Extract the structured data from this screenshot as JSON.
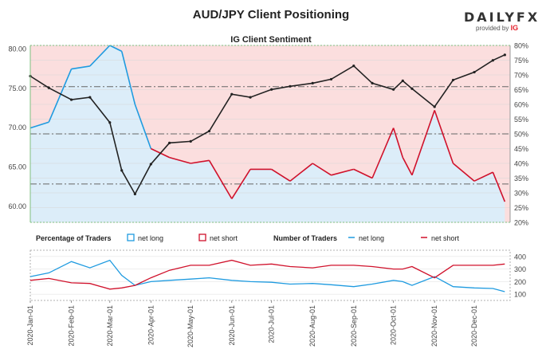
{
  "title": "AUD/JPY Client Positioning",
  "brand": {
    "name": "DAILY",
    "fx": "FX",
    "provided_by": "provided by",
    "ig": "IG"
  },
  "colors": {
    "net_long": "#1f9be0",
    "net_short": "#d0112b",
    "price": "#222222",
    "short_fill": "#fbdede",
    "long_fill": "#dcedf9",
    "axis": "#7fbf7f"
  },
  "chart_data": [
    {
      "type": "line",
      "title": "IG Client Sentiment",
      "y_left": {
        "ticks": [
          "80.00",
          "75.00",
          "70.00",
          "65.00",
          "60.00"
        ],
        "range": [
          57.9,
          80.4
        ]
      },
      "y_right": {
        "ticks": [
          "80%",
          "75%",
          "70%",
          "65%",
          "60%",
          "55%",
          "50%",
          "45%",
          "40%",
          "35%",
          "30%",
          "25%",
          "20%"
        ],
        "range": [
          20,
          80
        ]
      },
      "reference_lines": [
        50,
        66,
        33
      ],
      "x": [
        "2020-01-01",
        "2020-01-15",
        "2020-02-01",
        "2020-02-15",
        "2020-03-01",
        "2020-03-10",
        "2020-03-20",
        "2020-04-01",
        "2020-04-15",
        "2020-05-01",
        "2020-05-15",
        "2020-06-01",
        "2020-06-15",
        "2020-07-01",
        "2020-07-15",
        "2020-08-01",
        "2020-08-15",
        "2020-09-01",
        "2020-09-15",
        "2020-10-01",
        "2020-10-08",
        "2020-10-15",
        "2020-11-01",
        "2020-11-15",
        "2020-12-01",
        "2020-12-15",
        "2020-12-24"
      ],
      "series": [
        {
          "name": "price",
          "values": [
            76.5,
            75.0,
            73.5,
            73.8,
            70.6,
            64.5,
            61.5,
            65.3,
            68.0,
            68.2,
            69.5,
            74.2,
            73.8,
            74.8,
            75.2,
            75.6,
            76.1,
            77.8,
            75.6,
            74.8,
            75.9,
            74.9,
            72.6,
            76.0,
            77.0,
            78.5,
            79.2
          ]
        },
        {
          "name": "net long %",
          "values": [
            52,
            54,
            72,
            73,
            80,
            78,
            60,
            45,
            42,
            40,
            41,
            28,
            38,
            38,
            34,
            40,
            36,
            38,
            35,
            52,
            42,
            36,
            58,
            40,
            34,
            37,
            27
          ]
        }
      ]
    },
    {
      "type": "line",
      "title": "Percentage of Traders",
      "legend": [
        "net long",
        "net short"
      ],
      "y_ticks": [
        "400",
        "300",
        "200",
        "100"
      ],
      "y_range": [
        50,
        450
      ],
      "number_of_traders_legend": {
        "title": "Number of Traders",
        "items": [
          "net long",
          "net short"
        ]
      },
      "x_ticks": [
        "2020-Jan-01",
        "2020-Feb-01",
        "2020-Mar-01",
        "2020-Apr-01",
        "2020-May-01",
        "2020-Jun-01",
        "2020-Jul-01",
        "2020-Aug-01",
        "2020-Sep-01",
        "2020-Oct-01",
        "2020-Nov-01",
        "2020-Dec-01"
      ],
      "series": [
        {
          "name": "net long",
          "values": [
            240,
            270,
            360,
            310,
            370,
            250,
            170,
            200,
            210,
            220,
            230,
            210,
            200,
            195,
            180,
            185,
            175,
            160,
            180,
            210,
            200,
            170,
            240,
            160,
            150,
            145,
            120
          ]
        },
        {
          "name": "net short",
          "values": [
            210,
            225,
            190,
            185,
            140,
            150,
            170,
            230,
            290,
            330,
            330,
            370,
            330,
            340,
            320,
            310,
            330,
            330,
            320,
            300,
            300,
            320,
            230,
            330,
            330,
            330,
            340
          ]
        }
      ]
    }
  ]
}
